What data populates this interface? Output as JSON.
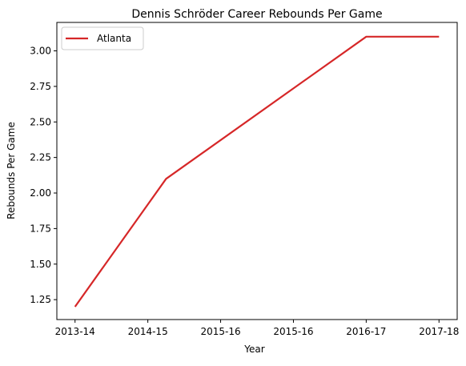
{
  "chart_data": {
    "type": "line",
    "title": "Dennis Schröder Career Rebounds Per Game",
    "xlabel": "Year",
    "ylabel": "Rebounds Per Game",
    "x_tick_labels": [
      "2013-14",
      "2014-15",
      "2015-16",
      "2015-16",
      "2016-17",
      "2017-18"
    ],
    "y_ticks": [
      "1.25",
      "1.50",
      "1.75",
      "2.00",
      "2.25",
      "2.50",
      "2.75",
      "3.00"
    ],
    "ylim": [
      1.11,
      3.2
    ],
    "xlim": [
      -0.25,
      5.25
    ],
    "series": [
      {
        "name": "Atlanta",
        "color": "#d62728",
        "x": [
          0,
          1.25,
          4.0,
          5.0
        ],
        "values": [
          1.2,
          2.1,
          3.1,
          3.1
        ]
      }
    ],
    "legend": "top-left",
    "grid": false
  }
}
